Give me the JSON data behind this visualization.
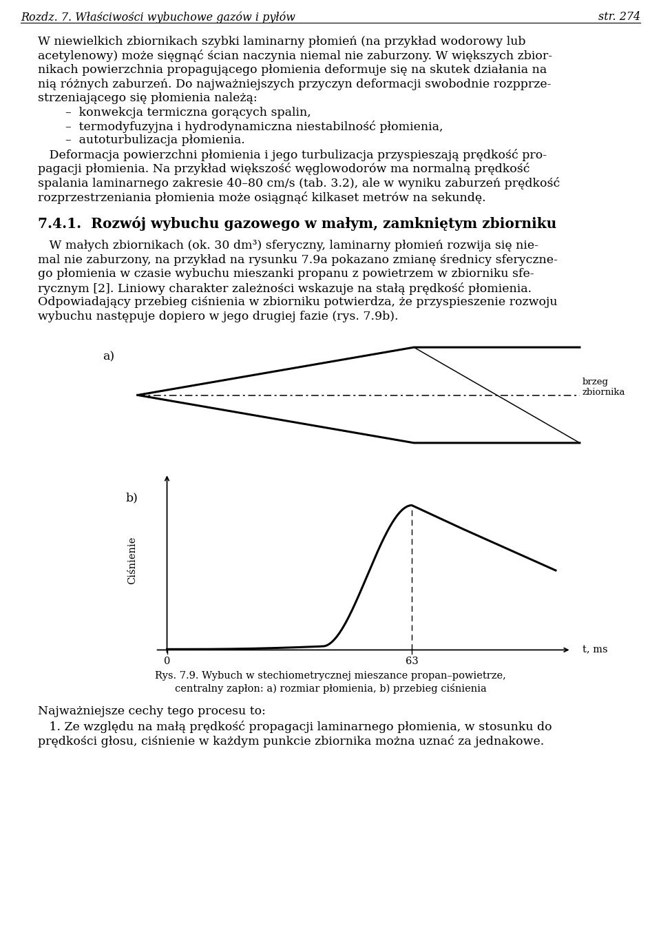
{
  "page_header_left": "Rozdz. 7. Właściwości wybuchowe gazów i pyłów",
  "page_header_right": "str. 274",
  "p1_lines": [
    "W niewielkich zbiornikach szybki laminarny płomień (na przykład wodorowy lub",
    "acetylenowy) może sięgnąć ścian naczynia niemal nie zaburzony. W większych zbior-",
    "nikach powierzchnia propagującego płomienia deformuje się na skutek działania na",
    "nią różnych zaburzeń. Do najważniejszych przyczyn deformacji swobodnie rozpprze-",
    "strzeniającego się płomienia należą:"
  ],
  "bullets": [
    "–  konwekcja termiczna gorących spalin,",
    "–  termodyfuzyjna i hydrodynamiczna niestabilność płomienia,",
    "–  autoturbulizacja płomienia."
  ],
  "p2_lines": [
    "   Deformacja powierzchni płomienia i jego turbulizacja przyspieszają prędkość pro-",
    "pagacji płomienia. Na przykład większość węglowodorów ma normalną prędkość",
    "spalania laminarnego zakresie 40–80 cm/s (tab. 3.2), ale w wyniku zaburzeń prędkość",
    "rozprzestrzeniania płomienia może osiągnąć kilkaset metrów na sekundę."
  ],
  "section_title": "7.4.1.  Rozwój wybuchu gazowego w małym, zamkniętym zbiorniku",
  "p3_lines": [
    "   W małych zbiornikach (ok. 30 dm³) sferyczny, laminarny płomień rozwija się nie-",
    "mal nie zaburzony, na przykład na rysunku 7.9a pokazano zmianę średnicy sferyczne-",
    "go płomienia w czasie wybuchu mieszanki propanu z powietrzem w zbiorniku sfe-",
    "rycznym [2]. Liniowy charakter zależności wskazuje na stałą prędkość płomienia.",
    "Odpowiadający przebieg ciśnienia w zbiorniku potwierdza, że przyspieszenie rozwoju",
    "wybuchu następuje dopiero w jego drugiej fazie (rys. 7.9b)."
  ],
  "label_a": "a)",
  "label_b": "b)",
  "label_brzeg": "brzeg\nzbiornika",
  "ylabel_b": "Ciśnienie",
  "xlabel_b": "t, ms",
  "tick_0": "0",
  "tick_63": "63",
  "caption_line1": "Rys. 7.9. Wybuch w stechiometrycznej mieszance propan–powietrze,",
  "caption_line2": "centralny zapłon: a) rozmiar płomienia, b) przebieg ciśnienia",
  "para4_bold": "Najważniejsze cechy tego procesu to:",
  "p5_lines": [
    "   1. Ze względu na małą prędkość propagacji laminarnego płomienia, w stosunku do",
    "prędkości głosu, ciśnienie w każdym punkcie zbiornika można uznać za jednakowe."
  ],
  "bg_color": "#ffffff",
  "text_color": "#000000",
  "font_size_body": 12.5,
  "font_size_header": 11.5,
  "font_size_section": 14.5,
  "line_color": "#000000"
}
